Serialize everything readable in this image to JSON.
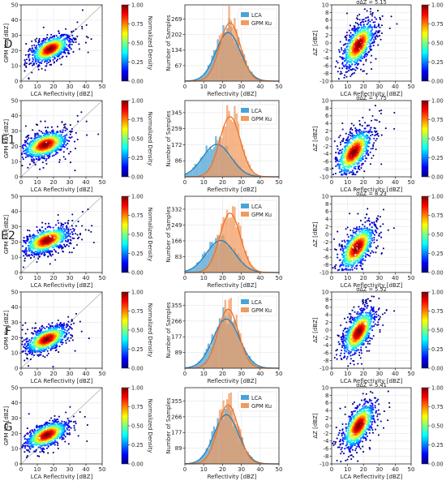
{
  "colormap_name": "jet",
  "colors": {
    "lca": "#4aa3d6",
    "gpm": "#f39a5c",
    "lca_line": "#2a7fb8",
    "gpm_line": "#e8732a"
  },
  "common": {
    "scatter": {
      "xlabel": "LCA Reflectivity [dBZ]",
      "ylabel": "GPM Ku [dBZ]",
      "xticks": [
        0,
        10,
        20,
        30,
        40,
        50
      ],
      "yticks": [
        0,
        10,
        20,
        30,
        40,
        50
      ],
      "xlim": [
        0,
        50
      ],
      "ylim": [
        0,
        50
      ],
      "cbar_label": "Normalized Density",
      "cbar_ticks": [
        "0.00",
        "0.25",
        "0.50",
        "0.75",
        "1.00"
      ]
    },
    "hist": {
      "xlabel": "Reflectivity [dBZ]",
      "ylabel": "Number of Samples",
      "xticks": [
        0,
        10,
        20,
        30,
        40,
        50
      ],
      "xlim": [
        0,
        50
      ],
      "legend": [
        "LCA",
        "GPM Ku"
      ],
      "legend_position": "top-right"
    },
    "diff": {
      "xlabel": "LCA Reflectivity [dBZ]",
      "ylabel": "ΔZ [dBZ]",
      "xticks": [
        0,
        10,
        20,
        30,
        40,
        50
      ],
      "yticks": [
        -10,
        -8,
        -6,
        -4,
        -2,
        0,
        2,
        4,
        6,
        8,
        10
      ],
      "xlim": [
        0,
        50
      ],
      "ylim": [
        -10,
        10
      ],
      "cbar_label": "Normalized Density",
      "cbar_ticks": [
        "0.00",
        "0.25",
        "0.50",
        "0.75",
        "1.00"
      ]
    }
  },
  "rows": [
    {
      "label": "D",
      "sigma": "σΔZ = 5.15",
      "hist_yticks": [
        67,
        134,
        202,
        269
      ],
      "hist_ymax": 330,
      "scatter": {
        "cx": 18,
        "cy": 21,
        "sx": 6,
        "sy": 4.5,
        "rho": 0.55
      },
      "lca": {
        "mu": 23,
        "sd": 6.5
      },
      "gpm": {
        "mu": 24,
        "sd": 5.5
      },
      "diff": {
        "cx": 17,
        "cy": -0.5,
        "sx": 5,
        "sy": 3,
        "rho": 0.6
      }
    },
    {
      "label": "E1",
      "sigma": "σΔZ = 7.75",
      "hist_yticks": [
        86,
        172,
        259,
        345
      ],
      "hist_ymax": 410,
      "scatter": {
        "cx": 15,
        "cy": 21,
        "sx": 7,
        "sy": 4.5,
        "rho": 0.45
      },
      "lca": {
        "mu": 17,
        "sd": 7.5
      },
      "gpm": {
        "mu": 24,
        "sd": 5.5
      },
      "diff": {
        "cx": 14,
        "cy": -3.5,
        "sx": 5.5,
        "sy": 3,
        "rho": 0.6
      }
    },
    {
      "label": "E2",
      "sigma": "σΔZ = 8.23",
      "hist_yticks": [
        83,
        166,
        249,
        332
      ],
      "hist_ymax": 400,
      "scatter": {
        "cx": 16,
        "cy": 21,
        "sx": 7,
        "sy": 4.5,
        "rho": 0.5
      },
      "lca": {
        "mu": 19,
        "sd": 7.5
      },
      "gpm": {
        "mu": 24,
        "sd": 5.5
      },
      "diff": {
        "cx": 16,
        "cy": -3.5,
        "sx": 5.5,
        "sy": 3,
        "rho": 0.6
      }
    },
    {
      "label": "F",
      "sigma": "σΔZ = 5.52",
      "hist_yticks": [
        89,
        177,
        266,
        355
      ],
      "hist_ymax": 430,
      "scatter": {
        "cx": 16,
        "cy": 19,
        "sx": 6.5,
        "sy": 4.5,
        "rho": 0.55
      },
      "lca": {
        "mu": 22,
        "sd": 7
      },
      "gpm": {
        "mu": 23,
        "sd": 5.5
      },
      "diff": {
        "cx": 17,
        "cy": -0.5,
        "sx": 5,
        "sy": 3,
        "rho": 0.6
      }
    },
    {
      "label": "G",
      "sigma": "σΔZ = 5.41",
      "hist_yticks": [
        89,
        177,
        266,
        355
      ],
      "hist_ymax": 430,
      "scatter": {
        "cx": 16,
        "cy": 19,
        "sx": 6.5,
        "sy": 4.5,
        "rho": 0.55
      },
      "lca": {
        "mu": 22,
        "sd": 6.5
      },
      "gpm": {
        "mu": 23,
        "sd": 5.5
      },
      "diff": {
        "cx": 17,
        "cy": 0,
        "sx": 5,
        "sy": 3,
        "rho": 0.6
      }
    }
  ],
  "chart_data": [
    {
      "type": "scatter",
      "panel": "D density",
      "title": "",
      "xlabel": "LCA Reflectivity [dBZ]",
      "ylabel": "GPM Ku [dBZ]",
      "xlim": [
        0,
        50
      ],
      "ylim": [
        0,
        50
      ],
      "colorbar": "Normalized Density"
    },
    {
      "type": "bar",
      "panel": "D histogram",
      "xlabel": "Reflectivity [dBZ]",
      "ylabel": "Number of Samples",
      "xlim": [
        0,
        50
      ],
      "series": [
        {
          "name": "LCA",
          "mode_dBZ": 23
        },
        {
          "name": "GPM Ku",
          "mode_dBZ": 24
        }
      ],
      "yticks": [
        67,
        134,
        202,
        269
      ]
    },
    {
      "type": "scatter",
      "panel": "D difference",
      "title": "σΔZ = 5.15",
      "xlabel": "LCA Reflectivity [dBZ]",
      "ylabel": "ΔZ [dBZ]",
      "xlim": [
        0,
        50
      ],
      "ylim": [
        -10,
        10
      ]
    },
    {
      "type": "scatter",
      "panel": "E1 density",
      "xlim": [
        0,
        50
      ],
      "ylim": [
        0,
        50
      ]
    },
    {
      "type": "bar",
      "panel": "E1 histogram",
      "series": [
        {
          "name": "LCA",
          "mode_dBZ": 17
        },
        {
          "name": "GPM Ku",
          "mode_dBZ": 24
        }
      ],
      "yticks": [
        86,
        172,
        259,
        345
      ]
    },
    {
      "type": "scatter",
      "panel": "E1 difference",
      "title": "σΔZ = 7.75",
      "xlim": [
        0,
        50
      ],
      "ylim": [
        -10,
        10
      ]
    },
    {
      "type": "scatter",
      "panel": "E2 density",
      "xlim": [
        0,
        50
      ],
      "ylim": [
        0,
        50
      ]
    },
    {
      "type": "bar",
      "panel": "E2 histogram",
      "series": [
        {
          "name": "LCA",
          "mode_dBZ": 19
        },
        {
          "name": "GPM Ku",
          "mode_dBZ": 24
        }
      ],
      "yticks": [
        83,
        166,
        249,
        332
      ]
    },
    {
      "type": "scatter",
      "panel": "E2 difference",
      "title": "σΔZ = 8.23",
      "xlim": [
        0,
        50
      ],
      "ylim": [
        -10,
        10
      ]
    },
    {
      "type": "scatter",
      "panel": "F density",
      "xlim": [
        0,
        50
      ],
      "ylim": [
        0,
        50
      ]
    },
    {
      "type": "bar",
      "panel": "F histogram",
      "series": [
        {
          "name": "LCA",
          "mode_dBZ": 22
        },
        {
          "name": "GPM Ku",
          "mode_dBZ": 23
        }
      ],
      "yticks": [
        89,
        177,
        266,
        355
      ]
    },
    {
      "type": "scatter",
      "panel": "F difference",
      "title": "σΔZ = 5.52",
      "xlim": [
        0,
        50
      ],
      "ylim": [
        -10,
        10
      ]
    },
    {
      "type": "scatter",
      "panel": "G density",
      "xlim": [
        0,
        50
      ],
      "ylim": [
        0,
        50
      ]
    },
    {
      "type": "bar",
      "panel": "G histogram",
      "series": [
        {
          "name": "LCA",
          "mode_dBZ": 22
        },
        {
          "name": "GPM Ku",
          "mode_dBZ": 23
        }
      ],
      "yticks": [
        89,
        177,
        266,
        355
      ]
    },
    {
      "type": "scatter",
      "panel": "G difference",
      "title": "σΔZ = 5.41",
      "xlim": [
        0,
        50
      ],
      "ylim": [
        -10,
        10
      ]
    }
  ]
}
